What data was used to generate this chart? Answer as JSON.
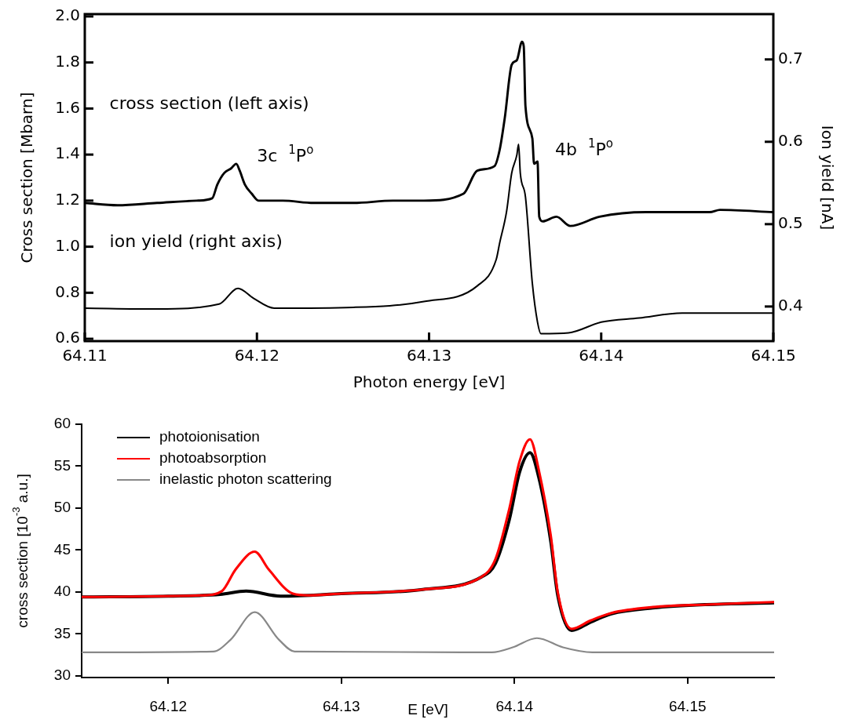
{
  "chart_data": [
    {
      "type": "line",
      "xlabel": "Photon energy [eV]",
      "ylabel": "Cross section [Mbarn]",
      "y2label": "Ion yield [nA]",
      "xlim": [
        64.11,
        64.15
      ],
      "xticks": [
        64.11,
        64.12,
        64.13,
        64.14,
        64.15
      ],
      "ylim": [
        0.59,
        2.01
      ],
      "yticks": [
        0.6,
        0.8,
        {
          "value": 1,
          "label": "1.0"
        },
        1.2,
        1.4,
        1.6,
        1.8,
        {
          "value": 2,
          "label": "2.0"
        }
      ],
      "y2lim": [
        0.358,
        0.755
      ],
      "y2ticks": [
        0.4,
        0.5,
        0.6,
        0.7
      ],
      "annotations": [
        "cross section (left axis)",
        "ion yield (right axis)",
        "3c  $^{1}$P$^{o}$",
        "4b  $^{1}$P$^{o}$"
      ],
      "series": [
        {
          "color": "#000000",
          "x": [
            64.11,
            64.1119,
            64.1142,
            64.1165,
            64.1174,
            64.1177,
            64.1181,
            64.1185,
            64.1188,
            64.119,
            64.1193,
            64.1197,
            64.1201,
            64.1215,
            64.1233,
            64.1256,
            64.1279,
            64.1297,
            64.132,
            64.1328,
            64.1338,
            64.1341,
            64.1344,
            64.1348,
            64.1351,
            64.1354,
            64.1355,
            64.1356,
            64.136,
            64.1361,
            64.1363,
            64.1364,
            64.1366,
            64.1374,
            64.1382,
            64.1399,
            64.1426,
            64.1463,
            64.1469,
            64.15
          ],
          "values": [
            1.19,
            1.18,
            1.19,
            1.2,
            1.21,
            1.27,
            1.32,
            1.34,
            1.36,
            1.33,
            1.27,
            1.23,
            1.2,
            1.2,
            1.19,
            1.19,
            1.2,
            1.2,
            1.23,
            1.33,
            1.35,
            1.42,
            1.56,
            1.79,
            1.81,
            1.89,
            1.87,
            1.61,
            1.47,
            1.36,
            1.37,
            1.13,
            1.11,
            1.13,
            1.09,
            1.13,
            1.15,
            1.15,
            1.16,
            1.15
          ]
        },
        {
          "color": "#000000",
          "axis": "y2",
          "x": [
            64.11,
            64.1142,
            64.1178,
            64.1189,
            64.1198,
            64.121,
            64.1256,
            64.1297,
            64.1328,
            64.1339,
            64.1341,
            64.1345,
            64.1348,
            64.1351,
            64.1352,
            64.1353,
            64.1356,
            64.136,
            64.1363,
            64.1365,
            64.1381,
            64.14,
            64.1422,
            64.1447,
            64.15
          ],
          "values": [
            0.398,
            0.397,
            0.403,
            0.422,
            0.41,
            0.398,
            0.399,
            0.406,
            0.425,
            0.457,
            0.477,
            0.515,
            0.562,
            0.584,
            0.597,
            0.562,
            0.533,
            0.428,
            0.381,
            0.367,
            0.368,
            0.381,
            0.386,
            0.392,
            0.392
          ]
        }
      ]
    },
    {
      "type": "line",
      "xlabel": "E [eV]",
      "ylabel": "cross section [10$^{-3}$ a.u.]",
      "xlim": [
        64.115,
        64.155
      ],
      "xticks": [
        64.12,
        64.13,
        64.14,
        64.15
      ],
      "ylim": [
        29.8,
        60
      ],
      "yticks": [
        30,
        35,
        40,
        45,
        50,
        55,
        60
      ],
      "legend": "top left",
      "series": [
        {
          "name": "photoionisation",
          "color": "#000000",
          "x": [
            64.115,
            64.12,
            64.123,
            64.1245,
            64.1265,
            64.13,
            64.1347,
            64.1381,
            64.1389,
            64.1397,
            64.1403,
            64.1409,
            64.1414,
            64.1421,
            64.1425,
            64.1433,
            64.1444,
            64.1456,
            64.148,
            64.1511,
            64.155
          ],
          "values": [
            39.4,
            39.5,
            39.7,
            40.1,
            39.5,
            39.8,
            40.3,
            41.8,
            43.4,
            48.6,
            54.3,
            56.6,
            53.7,
            46.0,
            39.6,
            35.4,
            36.4,
            37.4,
            38.1,
            38.5,
            38.7
          ]
        },
        {
          "name": "photoabsorption",
          "color": "#ff0000",
          "x": [
            64.115,
            64.122,
            64.1231,
            64.1239,
            64.125,
            64.1258,
            64.1272,
            64.1281,
            64.13,
            64.1347,
            64.1381,
            64.1389,
            64.1397,
            64.1403,
            64.1409,
            64.1414,
            64.1421,
            64.1425,
            64.1433,
            64.1444,
            64.1456,
            64.148,
            64.1511,
            64.155
          ],
          "values": [
            39.4,
            39.6,
            40.1,
            42.7,
            44.8,
            42.7,
            39.8,
            39.6,
            39.8,
            40.3,
            41.8,
            43.9,
            49.9,
            55.6,
            58.2,
            54.6,
            46.7,
            40.0,
            35.6,
            36.6,
            37.5,
            38.2,
            38.5,
            38.8
          ]
        },
        {
          "name": "inelastic photon scattering",
          "color": "#888888",
          "x": [
            64.115,
            64.1226,
            64.1236,
            64.125,
            64.1264,
            64.1273,
            64.1387,
            64.1399,
            64.1413,
            64.1428,
            64.1445,
            64.155
          ],
          "values": [
            32.8,
            32.9,
            34.3,
            37.6,
            34.3,
            32.9,
            32.8,
            33.4,
            34.5,
            33.4,
            32.8,
            32.8
          ]
        }
      ]
    }
  ]
}
